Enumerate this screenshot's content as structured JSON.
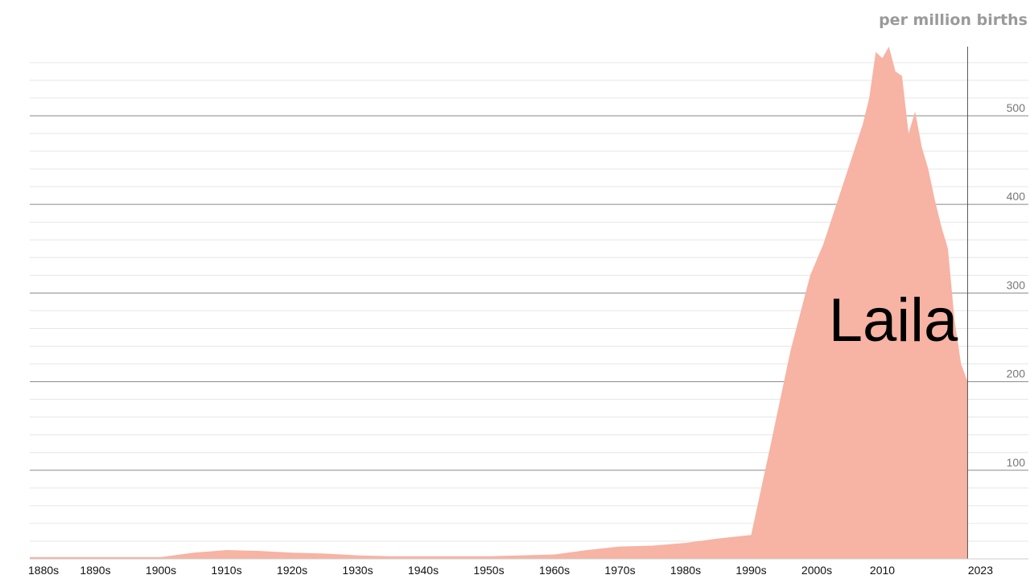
{
  "chart_data": {
    "type": "area",
    "name_label": "Laila",
    "unit_label": "per million births",
    "color": "#f7b3a3",
    "xlim": [
      1880,
      2027
    ],
    "ylim": [
      0,
      578
    ],
    "y_ticks": [
      100,
      200,
      300,
      400,
      500
    ],
    "y_minor_step": 20,
    "x_ticks": [
      {
        "label": "1880s",
        "value": 1880
      },
      {
        "label": "1890s",
        "value": 1890
      },
      {
        "label": "1900s",
        "value": 1900
      },
      {
        "label": "1910s",
        "value": 1910
      },
      {
        "label": "1920s",
        "value": 1920
      },
      {
        "label": "1930s",
        "value": 1930
      },
      {
        "label": "1940s",
        "value": 1940
      },
      {
        "label": "1950s",
        "value": 1950
      },
      {
        "label": "1960s",
        "value": 1960
      },
      {
        "label": "1970s",
        "value": 1970
      },
      {
        "label": "1980s",
        "value": 1980
      },
      {
        "label": "1990s",
        "value": 1990
      },
      {
        "label": "2000s",
        "value": 2000
      },
      {
        "label": "2010",
        "value": 2010
      },
      {
        "label": "2023",
        "value": 2023
      }
    ],
    "current_year": 2023,
    "grid": true,
    "series": [
      {
        "x": [
          1880,
          1890,
          1900,
          1905,
          1910,
          1915,
          1920,
          1925,
          1930,
          1935,
          1940,
          1945,
          1950,
          1955,
          1960,
          1965,
          1970,
          1975,
          1980,
          1985,
          1990,
          1993,
          1996,
          1999,
          2001,
          2003,
          2005,
          2007,
          2008,
          2009,
          2010,
          2011,
          2012,
          2013,
          2014,
          2015,
          2016,
          2017,
          2018,
          2019,
          2020,
          2021,
          2022,
          2023
        ],
        "y": [
          2,
          2,
          2,
          7,
          10,
          9,
          7,
          6,
          4,
          3,
          3,
          3,
          3,
          4,
          5,
          10,
          14,
          15,
          18,
          23,
          27,
          130,
          235,
          320,
          355,
          400,
          445,
          490,
          520,
          572,
          565,
          578,
          550,
          545,
          480,
          505,
          465,
          440,
          405,
          375,
          350,
          270,
          220,
          200
        ]
      }
    ]
  }
}
